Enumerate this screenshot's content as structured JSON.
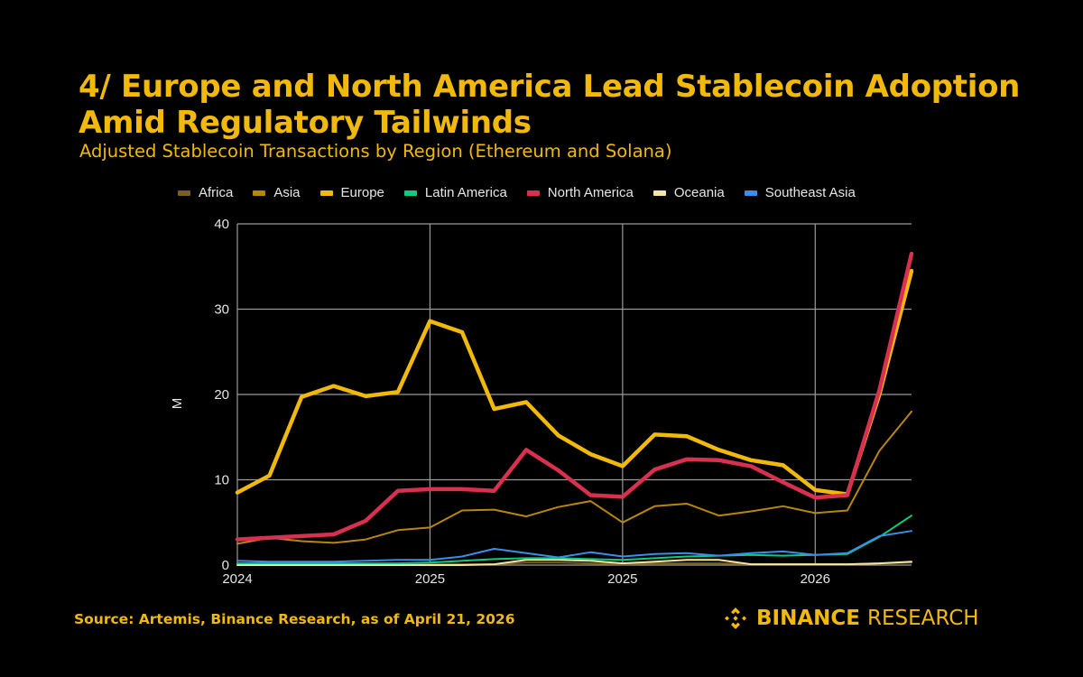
{
  "title_line1": "4/ Europe and North America Lead Stablecoin Adoption",
  "title_line2": "Amid Regulatory Tailwinds",
  "subtitle": "Adjusted Stablecoin Transactions by Region (Ethereum and Solana)",
  "source": "Source: Artemis, Binance Research, as of April 21, 2026",
  "brand": {
    "icon": "binance-diamond-icon",
    "bold": "BINANCE",
    "regular": "RESEARCH"
  },
  "colors": {
    "accent": "#F0B90B",
    "background": "#000000"
  },
  "chart_data": {
    "type": "line",
    "title": "Adjusted Stablecoin Transactions by Region (Ethereum and Solana)",
    "xlabel": "",
    "ylabel": "M",
    "ylim": [
      0,
      40
    ],
    "yticks": [
      0,
      10,
      20,
      30,
      40
    ],
    "xticks": [
      {
        "index": 0,
        "label": "2024"
      },
      {
        "index": 6,
        "label": "2025"
      },
      {
        "index": 12,
        "label": "2025"
      },
      {
        "index": 18,
        "label": "2026"
      }
    ],
    "n_points": 22,
    "grid": true,
    "legend_position": "top",
    "series": [
      {
        "name": "Africa",
        "color": "#7A5F1E",
        "width": 2,
        "values": [
          0.1,
          0.1,
          0.1,
          0.1,
          0.1,
          0.1,
          0.1,
          0.1,
          0.1,
          0.3,
          0.3,
          0.2,
          0.1,
          0.2,
          0.2,
          0.2,
          0.1,
          0.1,
          0.1,
          0.1,
          0.2,
          0.3
        ]
      },
      {
        "name": "Asia",
        "color": "#B8860B",
        "width": 2,
        "values": [
          2.5,
          3.2,
          2.8,
          2.6,
          3.0,
          4.1,
          4.4,
          6.4,
          6.5,
          5.7,
          6.8,
          7.5,
          5.0,
          6.9,
          7.2,
          5.8,
          6.3,
          6.9,
          6.1,
          6.4,
          13.4,
          18.0
        ]
      },
      {
        "name": "Europe",
        "color": "#F0B90B",
        "width": 4.5,
        "values": [
          8.5,
          10.5,
          19.7,
          21.0,
          19.8,
          20.3,
          28.6,
          27.3,
          18.3,
          19.1,
          15.2,
          13.0,
          11.6,
          15.3,
          15.1,
          13.5,
          12.3,
          11.7,
          8.8,
          8.3,
          20.0,
          34.5
        ]
      },
      {
        "name": "Latin America",
        "color": "#0ECB81",
        "width": 2,
        "values": [
          0.2,
          0.2,
          0.2,
          0.2,
          0.2,
          0.2,
          0.3,
          0.5,
          0.7,
          0.8,
          0.8,
          0.7,
          0.6,
          0.8,
          1.0,
          1.1,
          1.2,
          1.1,
          1.2,
          1.3,
          3.3,
          5.8
        ]
      },
      {
        "name": "North America",
        "color": "#D9304F",
        "width": 4.5,
        "values": [
          3.0,
          3.2,
          3.4,
          3.6,
          5.2,
          8.7,
          8.9,
          8.9,
          8.7,
          13.5,
          11.1,
          8.2,
          8.0,
          11.2,
          12.4,
          12.3,
          11.6,
          9.7,
          7.9,
          8.2,
          20.5,
          36.5
        ]
      },
      {
        "name": "Oceania",
        "color": "#F5E6A3",
        "width": 2,
        "values": [
          0.0,
          0.0,
          0.0,
          0.0,
          0.0,
          0.0,
          0.0,
          0.0,
          0.1,
          0.6,
          0.6,
          0.5,
          0.2,
          0.4,
          0.6,
          0.6,
          0.1,
          0.1,
          0.1,
          0.1,
          0.2,
          0.4
        ]
      },
      {
        "name": "Southeast Asia",
        "color": "#3C8DE8",
        "width": 2,
        "values": [
          0.5,
          0.4,
          0.4,
          0.4,
          0.5,
          0.6,
          0.6,
          1.0,
          1.9,
          1.4,
          0.9,
          1.5,
          1.0,
          1.3,
          1.4,
          1.1,
          1.4,
          1.6,
          1.2,
          1.4,
          3.4,
          4.0
        ]
      }
    ]
  }
}
